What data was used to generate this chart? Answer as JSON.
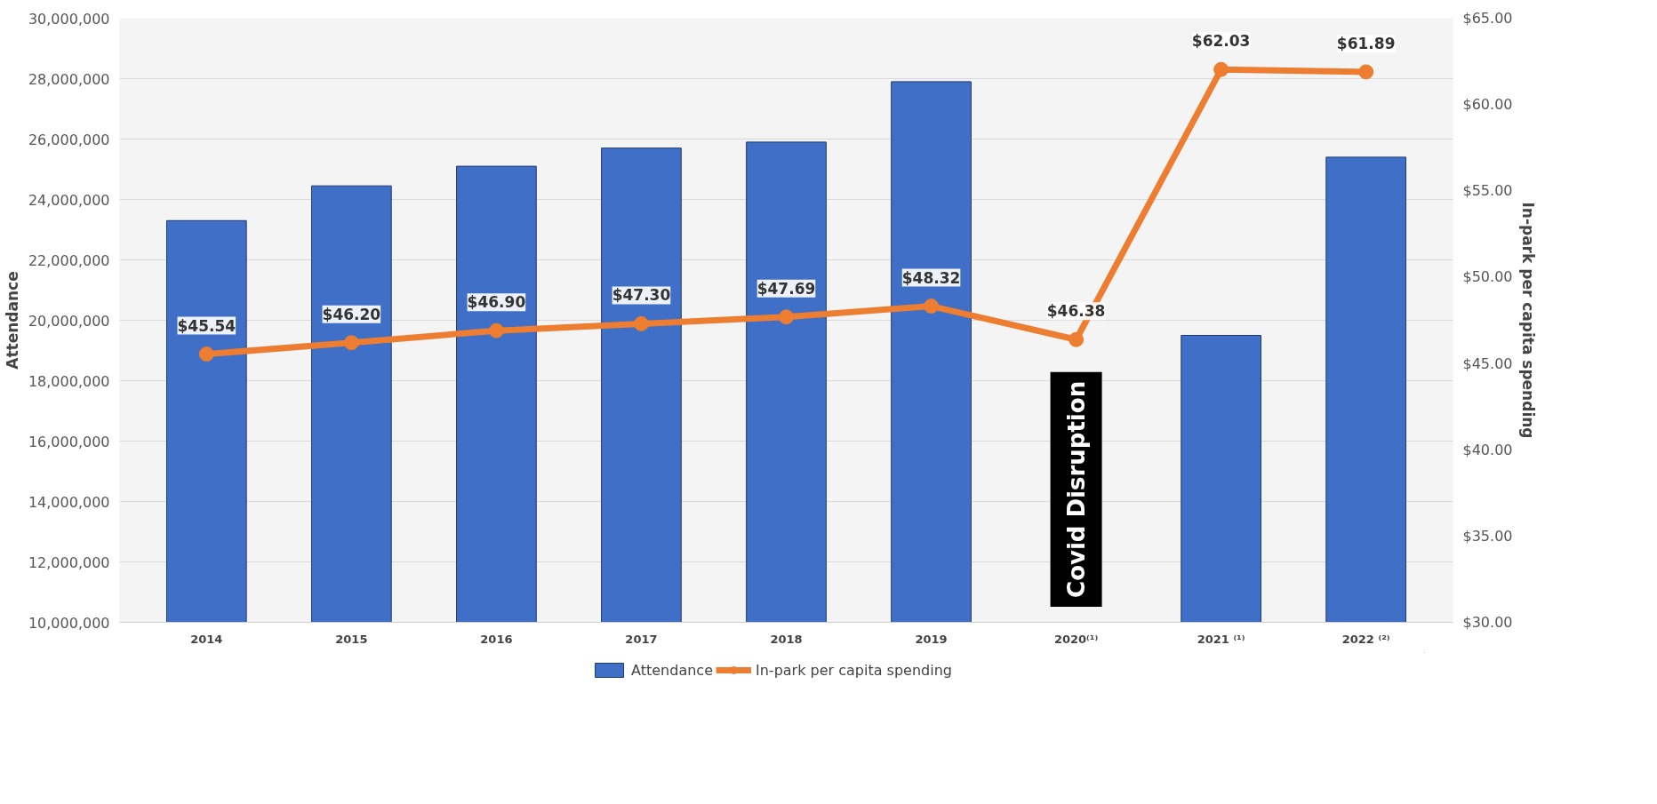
{
  "chart_data": {
    "type": "bar",
    "categories": [
      "2014",
      "2015",
      "2016",
      "2017",
      "2018",
      "2019",
      "2020⁽¹⁾",
      "2021 ⁽¹⁾",
      "2022 ⁽²⁾"
    ],
    "series": [
      {
        "name": "Attendance",
        "color": "#3f6fc6",
        "values": [
          23300000,
          24450000,
          25100000,
          25700000,
          25900000,
          27900000,
          null,
          19500000,
          25400000
        ]
      },
      {
        "name": "In-park per capita spending",
        "type": "line",
        "axis": "y2",
        "color": "#ed7d31",
        "marker": "circle",
        "values": [
          45.54,
          46.2,
          46.9,
          47.3,
          47.69,
          48.32,
          46.38,
          62.03,
          61.89
        ],
        "value_labels": [
          "$45.54",
          "$46.20",
          "$46.90",
          "$47.30",
          "$47.69",
          "$48.32",
          "$46.38",
          "$62.03",
          "$61.89"
        ]
      }
    ],
    "ylabel": "Attendance",
    "y2label": "In-park per capita spending",
    "ylim": [
      10000000,
      30000000
    ],
    "yticks": [
      {
        "value": 10000000,
        "label": "10,000,000"
      },
      {
        "value": 12000000,
        "label": "12,000,000"
      },
      {
        "value": 14000000,
        "label": "14,000,000"
      },
      {
        "value": 16000000,
        "label": "16,000,000"
      },
      {
        "value": 18000000,
        "label": "18,000,000"
      },
      {
        "value": 20000000,
        "label": "20,000,000"
      },
      {
        "value": 22000000,
        "label": "22,000,000"
      },
      {
        "value": 24000000,
        "label": "24,000,000"
      },
      {
        "value": 26000000,
        "label": "26,000,000"
      },
      {
        "value": 28000000,
        "label": "28,000,000"
      },
      {
        "value": 30000000,
        "label": "30,000,000"
      }
    ],
    "y2lim": [
      30,
      65
    ],
    "y2ticks": [
      {
        "value": 30,
        "label": "$30.00"
      },
      {
        "value": 35,
        "label": "$35.00"
      },
      {
        "value": 40,
        "label": "$40.00"
      },
      {
        "value": 45,
        "label": "$45.00"
      },
      {
        "value": 50,
        "label": "$50.00"
      },
      {
        "value": 55,
        "label": "$55.00"
      },
      {
        "value": 60,
        "label": "$60.00"
      },
      {
        "value": 65,
        "label": "$65.00"
      }
    ],
    "annotations": [
      "Covid Disruption"
    ],
    "grid": "y",
    "legend": "bottom"
  }
}
